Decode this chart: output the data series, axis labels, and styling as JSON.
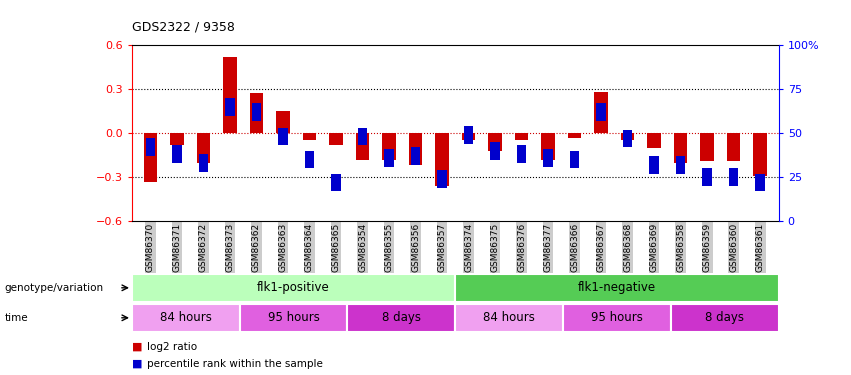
{
  "title": "GDS2322 / 9358",
  "samples": [
    "GSM86370",
    "GSM86371",
    "GSM86372",
    "GSM86373",
    "GSM86362",
    "GSM86363",
    "GSM86364",
    "GSM86365",
    "GSM86354",
    "GSM86355",
    "GSM86356",
    "GSM86357",
    "GSM86374",
    "GSM86375",
    "GSM86376",
    "GSM86377",
    "GSM86366",
    "GSM86367",
    "GSM86368",
    "GSM86369",
    "GSM86358",
    "GSM86359",
    "GSM86360",
    "GSM86361"
  ],
  "log2_ratio": [
    -0.33,
    -0.08,
    -0.2,
    0.52,
    0.27,
    0.15,
    -0.05,
    -0.08,
    -0.18,
    -0.18,
    -0.22,
    -0.36,
    -0.05,
    -0.12,
    -0.05,
    -0.18,
    -0.03,
    0.28,
    -0.05,
    -0.1,
    -0.2,
    -0.19,
    -0.19,
    -0.29
  ],
  "percentile_rank": [
    42,
    38,
    33,
    65,
    62,
    48,
    35,
    22,
    48,
    36,
    37,
    24,
    49,
    40,
    38,
    36,
    35,
    62,
    47,
    32,
    32,
    25,
    25,
    22
  ],
  "red_color": "#cc0000",
  "blue_color": "#0000cc",
  "ylim": [
    -0.6,
    0.6
  ],
  "yticks_left": [
    -0.6,
    -0.3,
    0.0,
    0.3,
    0.6
  ],
  "yticks_right": [
    0,
    25,
    50,
    75,
    100
  ],
  "hlines_dotted": [
    0.3,
    -0.3
  ],
  "hline_red": 0.0,
  "genotype_groups": [
    {
      "label": "flk1-positive",
      "start": 0,
      "end": 12,
      "color": "#bbffbb"
    },
    {
      "label": "flk1-negative",
      "start": 12,
      "end": 24,
      "color": "#55cc55"
    }
  ],
  "time_groups": [
    {
      "label": "84 hours",
      "start": 0,
      "end": 4,
      "color": "#f0a0f0"
    },
    {
      "label": "95 hours",
      "start": 4,
      "end": 8,
      "color": "#e060e0"
    },
    {
      "label": "8 days",
      "start": 8,
      "end": 12,
      "color": "#cc33cc"
    },
    {
      "label": "84 hours",
      "start": 12,
      "end": 16,
      "color": "#f0a0f0"
    },
    {
      "label": "95 hours",
      "start": 16,
      "end": 20,
      "color": "#e060e0"
    },
    {
      "label": "8 days",
      "start": 20,
      "end": 24,
      "color": "#cc33cc"
    }
  ],
  "legend_items": [
    {
      "label": "log2 ratio",
      "color": "#cc0000"
    },
    {
      "label": "percentile rank within the sample",
      "color": "#0000cc"
    }
  ],
  "tick_bg_color": "#cccccc",
  "figure_bg": "#ffffff"
}
